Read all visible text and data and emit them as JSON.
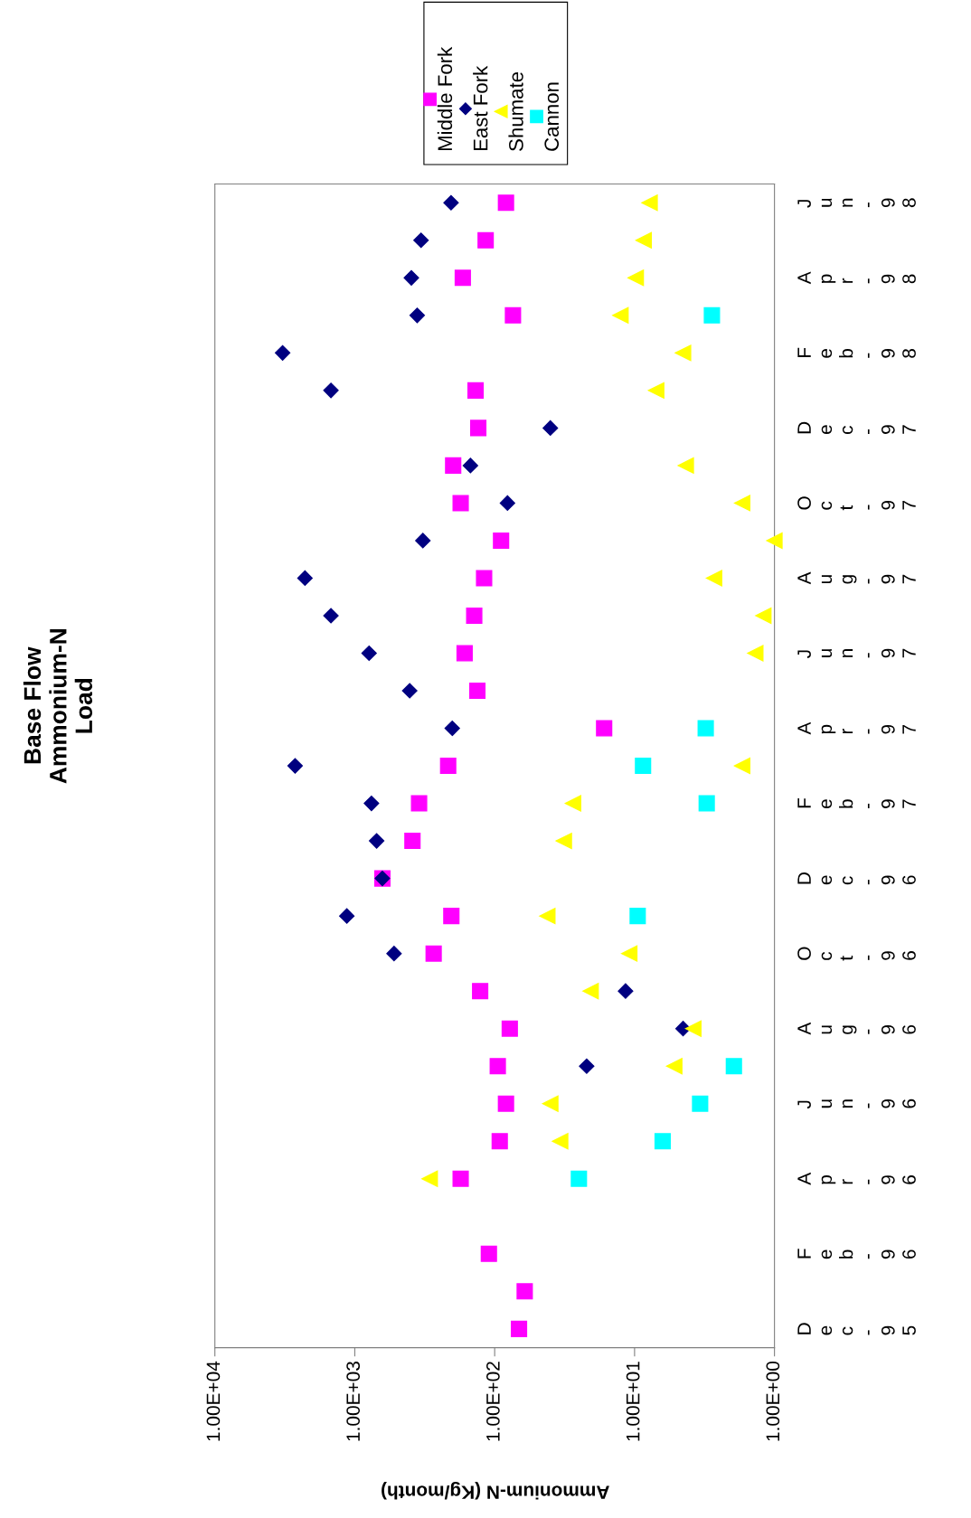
{
  "chart_data": {
    "type": "scatter",
    "orientation": "horizontal",
    "title": "Base Flow\nAmmonium-N\nLoad",
    "xlabel": "Ammonium-N (Kg/month)",
    "categories": [
      "Jun-98",
      null,
      "Apr-98",
      null,
      "Feb-98",
      null,
      "Dec-97",
      null,
      "Oct-97",
      null,
      "Aug-97",
      null,
      "Jun-97",
      null,
      "Apr-97",
      null,
      "Feb-97",
      null,
      "Dec-96",
      null,
      "Oct-96",
      null,
      "Aug-96",
      null,
      "Jun-96",
      null,
      "Apr-96",
      null,
      "Feb-96",
      null,
      "Dec-95"
    ],
    "series": [
      {
        "name": "Middle Fork",
        "color": "#ff00ff",
        "marker": "square",
        "values": [
          83,
          116,
          169,
          74,
          null,
          137,
          131,
          198,
          175,
          90,
          119,
          140,
          164,
          133,
          16.5,
          215,
          347,
          387,
          635,
          204,
          273,
          127,
          78,
          95,
          83,
          92,
          175,
          null,
          110,
          61,
          67
        ]
      },
      {
        "name": "East Fork",
        "color": "#000080",
        "marker": "diamond",
        "values": [
          205,
          336,
          394,
          358,
          3280,
          1480,
          40,
          149,
          81,
          326,
          2270,
          1480,
          790,
          405,
          201,
          2670,
          760,
          698,
          635,
          1140,
          524,
          11.6,
          4.5,
          22,
          null,
          null,
          null,
          null,
          null,
          null,
          null
        ]
      },
      {
        "name": "Shumate",
        "color": "#ffff00",
        "marker": "triangle",
        "values": [
          7.8,
          8.6,
          9.8,
          12.6,
          4.5,
          7.0,
          null,
          4.3,
          1.7,
          1.0,
          2.7,
          1.2,
          1.37,
          null,
          null,
          1.7,
          27.5,
          32,
          null,
          42,
          10.9,
          20.6,
          3.8,
          5.2,
          40,
          34,
          291,
          null,
          null,
          null,
          null
        ]
      },
      {
        "name": "Cannon",
        "color": "#00ffff",
        "marker": "square",
        "values": [
          null,
          null,
          null,
          2.8,
          null,
          null,
          null,
          null,
          null,
          null,
          null,
          null,
          null,
          null,
          3.1,
          8.7,
          3.05,
          null,
          null,
          9.5,
          null,
          null,
          null,
          1.95,
          3.4,
          6.3,
          25,
          null,
          null,
          null,
          null
        ]
      }
    ],
    "log": "x",
    "xlim": [
      10000,
      1
    ],
    "xticks": [
      {
        "value": 10000,
        "label": "1.00E+04"
      },
      {
        "value": 1000,
        "label": "1.00E+03"
      },
      {
        "value": 100,
        "label": "1.00E+02"
      },
      {
        "value": 10,
        "label": "1.00E+01"
      },
      {
        "value": 1,
        "label": "1.00E+00"
      }
    ],
    "grid": false,
    "legend": "top"
  }
}
